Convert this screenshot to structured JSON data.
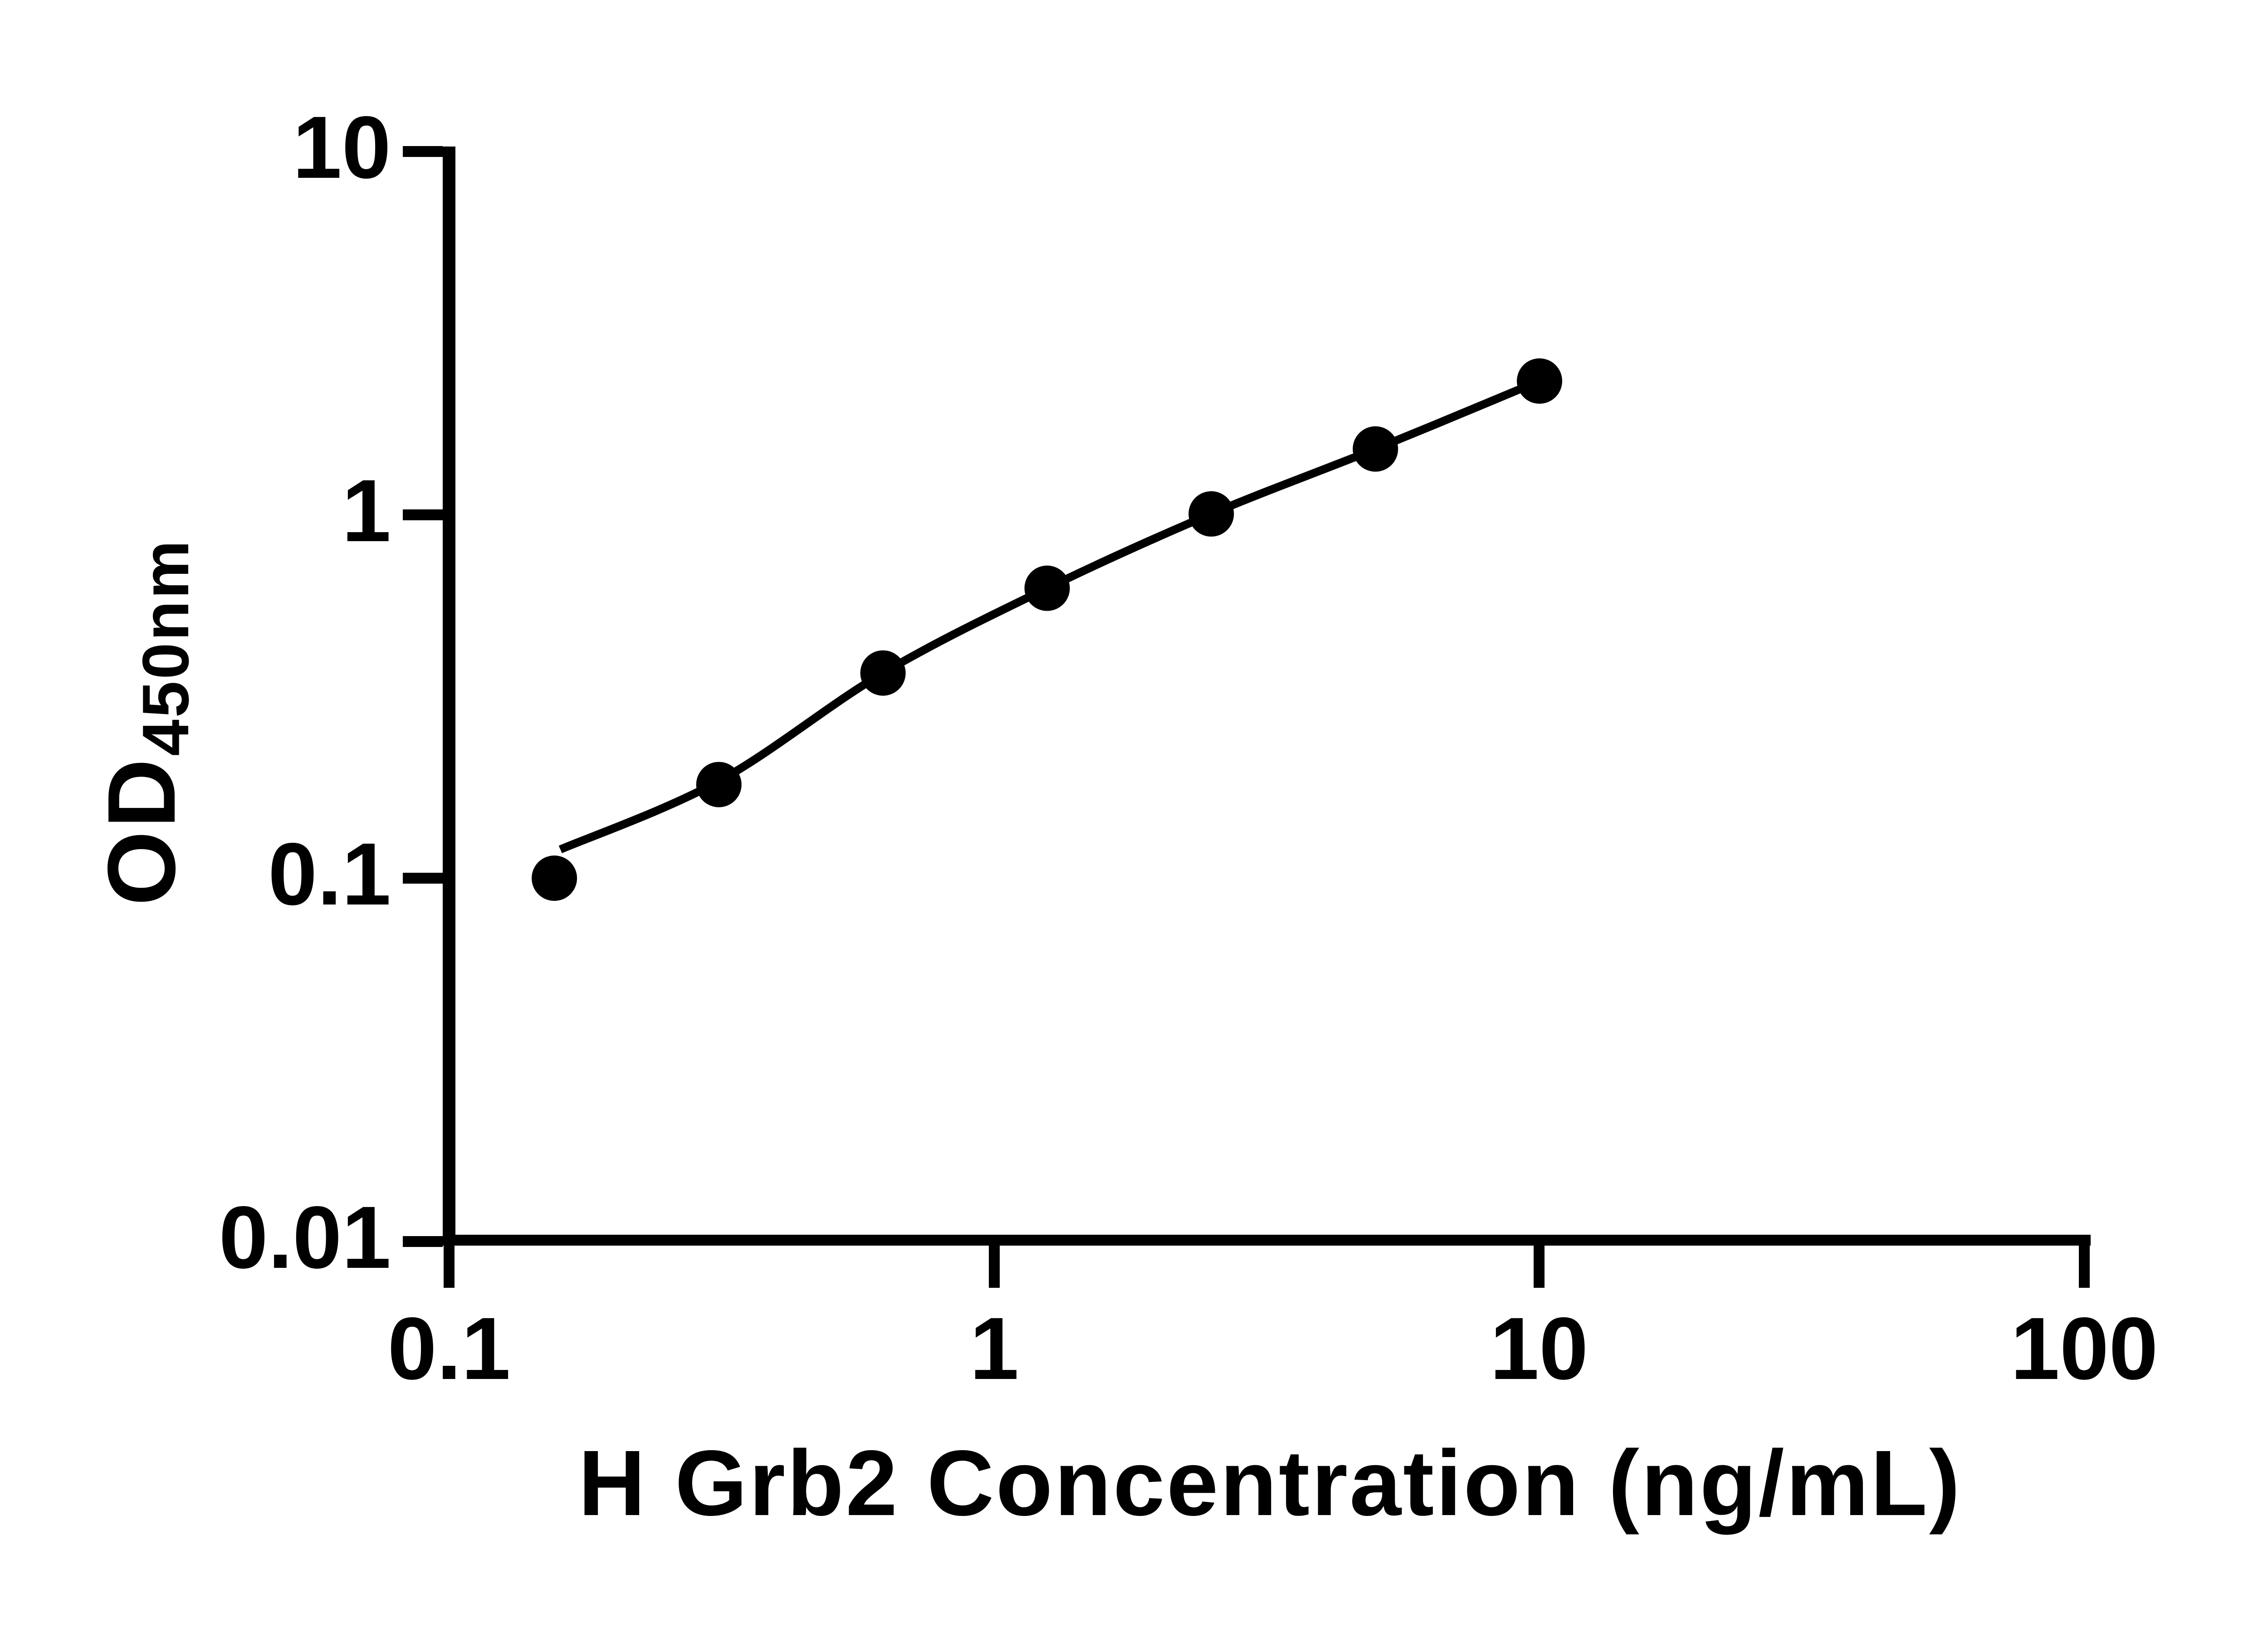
{
  "figure": {
    "background_color": "#ffffff",
    "ink_color": "#000000"
  },
  "y_axis": {
    "label_main": "OD",
    "label_sub": "450nm",
    "tick_labels": [
      "10",
      "1",
      "0.1",
      "0.01"
    ]
  },
  "x_axis": {
    "title": "H Grb2 Concentration (ng/mL)",
    "tick_labels": [
      "0.1",
      "1",
      "10",
      "100"
    ]
  },
  "chart_data": {
    "type": "scatter",
    "x": [
      0.156,
      0.3125,
      0.625,
      1.25,
      2.5,
      5,
      10
    ],
    "y": [
      0.1,
      0.181,
      0.367,
      0.628,
      1.006,
      1.518,
      2.335
    ],
    "fit_curve": {
      "x": [
        0.16,
        0.3125,
        0.625,
        1.25,
        2.5,
        5,
        10
      ],
      "y": [
        0.12,
        0.185,
        0.367,
        0.628,
        1.006,
        1.518,
        2.335
      ]
    },
    "title": "",
    "xlabel": "H Grb2 Concentration (ng/mL)",
    "ylabel": "OD450nm",
    "xscale": "log",
    "yscale": "log",
    "xlim": [
      0.1,
      100
    ],
    "ylim": [
      0.01,
      10
    ],
    "x_ticks": [
      0.1,
      1,
      10,
      100
    ],
    "y_ticks": [
      0.01,
      0.1,
      1,
      10
    ],
    "marker": "filled-circle",
    "marker_color": "#000000",
    "line_color": "#000000",
    "grid": false,
    "legend_position": "none"
  }
}
